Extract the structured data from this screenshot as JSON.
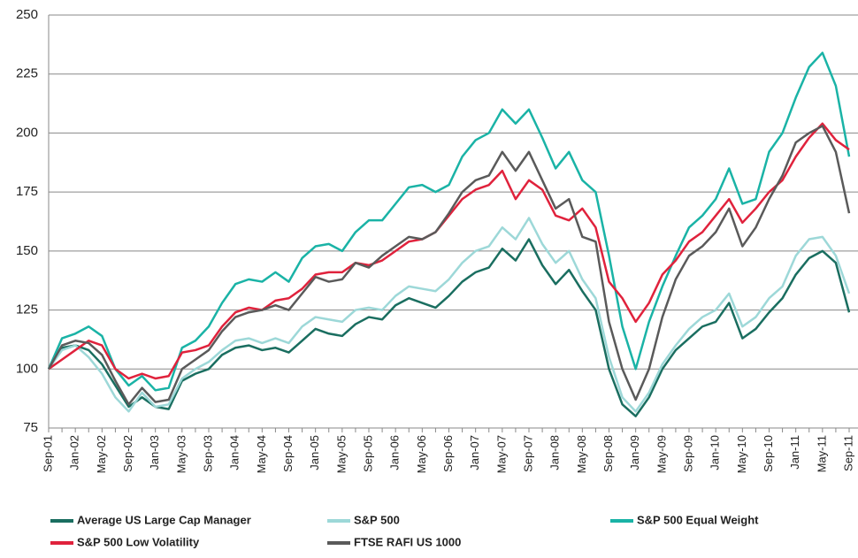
{
  "chart_data": {
    "type": "line",
    "categories": [
      "Sep-01",
      null,
      "Jan-02",
      null,
      "May-02",
      null,
      "Sep-02",
      null,
      "Jan-03",
      null,
      "May-03",
      null,
      "Sep-03",
      null,
      "Jan-04",
      null,
      "May-04",
      null,
      "Sep-04",
      null,
      "Jan-05",
      null,
      "May-05",
      null,
      "Sep-05",
      null,
      "Jan-06",
      null,
      "May-06",
      null,
      "Sep-06",
      null,
      "Jan-07",
      null,
      "May-07",
      null,
      "Sep-07",
      null,
      "Jan-08",
      null,
      "May-08",
      null,
      "Sep-08",
      null,
      "Jan-09",
      null,
      "May-09",
      null,
      "Sep-09",
      null,
      "Jan-10",
      null,
      "May-10",
      null,
      "Sep-10",
      null,
      "Jan-11",
      null,
      "May-11",
      null,
      "Sep-11"
    ],
    "series": [
      {
        "name": "Average US Large Cap Manager",
        "color": "#1a6e60",
        "values": [
          100,
          109,
          110,
          108,
          102,
          93,
          84,
          88,
          84,
          83,
          95,
          98,
          100,
          106,
          109,
          110,
          108,
          109,
          107,
          112,
          117,
          115,
          114,
          119,
          122,
          121,
          127,
          130,
          128,
          126,
          131,
          137,
          141,
          143,
          151,
          146,
          155,
          144,
          136,
          142,
          133,
          125,
          100,
          85,
          80,
          88,
          100,
          108,
          113,
          118,
          120,
          128,
          113,
          117,
          124,
          130,
          140,
          147,
          150,
          145,
          124
        ]
      },
      {
        "name": "S&P 500",
        "color": "#9dd8d8",
        "values": [
          100,
          108,
          110,
          105,
          98,
          88,
          82,
          90,
          84,
          85,
          96,
          100,
          103,
          108,
          112,
          113,
          111,
          113,
          111,
          118,
          122,
          121,
          120,
          125,
          126,
          125,
          131,
          135,
          134,
          133,
          138,
          145,
          150,
          152,
          160,
          155,
          164,
          153,
          145,
          150,
          138,
          130,
          105,
          88,
          82,
          90,
          102,
          110,
          117,
          122,
          125,
          132,
          118,
          122,
          130,
          135,
          148,
          155,
          156,
          148,
          132
        ]
      },
      {
        "name": "S&P 500 Equal Weight",
        "color": "#1ab3a6",
        "values": [
          100,
          113,
          115,
          118,
          114,
          100,
          93,
          97,
          91,
          92,
          109,
          112,
          118,
          128,
          136,
          138,
          137,
          141,
          137,
          147,
          152,
          153,
          150,
          158,
          163,
          163,
          170,
          177,
          178,
          175,
          178,
          190,
          197,
          200,
          210,
          204,
          210,
          198,
          185,
          192,
          180,
          175,
          148,
          118,
          100,
          120,
          135,
          148,
          160,
          165,
          172,
          185,
          170,
          172,
          192,
          200,
          215,
          228,
          234,
          220,
          190
        ]
      },
      {
        "name": "S&P 500 Low Volatility",
        "color": "#e0223c",
        "values": [
          100,
          104,
          108,
          112,
          110,
          100,
          96,
          98,
          96,
          97,
          107,
          108,
          110,
          118,
          124,
          126,
          125,
          129,
          130,
          134,
          140,
          141,
          141,
          145,
          144,
          146,
          150,
          154,
          155,
          158,
          165,
          172,
          176,
          178,
          184,
          172,
          180,
          176,
          165,
          163,
          168,
          160,
          137,
          130,
          120,
          128,
          140,
          146,
          154,
          158,
          165,
          172,
          162,
          168,
          175,
          180,
          190,
          198,
          204,
          197,
          193
        ]
      },
      {
        "name": "FTSE RAFI US 1000",
        "color": "#5a5a5a",
        "values": [
          100,
          110,
          112,
          111,
          106,
          95,
          85,
          92,
          86,
          87,
          100,
          104,
          108,
          116,
          122,
          124,
          125,
          127,
          125,
          132,
          139,
          137,
          138,
          145,
          143,
          148,
          152,
          156,
          155,
          158,
          166,
          175,
          180,
          182,
          192,
          184,
          192,
          180,
          168,
          172,
          156,
          154,
          120,
          100,
          87,
          100,
          122,
          138,
          148,
          152,
          158,
          168,
          152,
          160,
          172,
          182,
          196,
          200,
          203,
          192,
          166
        ]
      }
    ],
    "ylim": [
      75,
      250
    ],
    "yticks": [
      75,
      100,
      125,
      150,
      175,
      200,
      225,
      250
    ],
    "grid": true
  }
}
